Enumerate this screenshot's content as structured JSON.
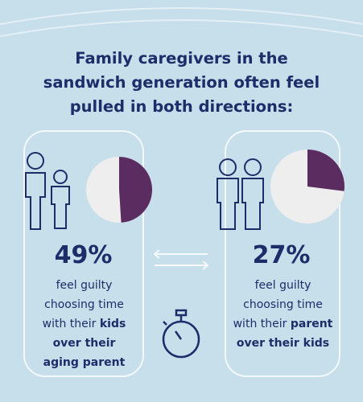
{
  "title": "Family caregivers in the sandwich generation often feel pulled in both directions:",
  "panels": [
    {
      "value": 49,
      "value_label": "49%",
      "text": "feel guilty choosing time with their",
      "emphasis": "kids over their aging parent",
      "color": "#5b2c5f"
    },
    {
      "value": 27,
      "value_label": "27%",
      "text": "feel guilty choosing time with their",
      "emphasis": "parent over their kids",
      "color": "#5b2c5f"
    }
  ]
}
